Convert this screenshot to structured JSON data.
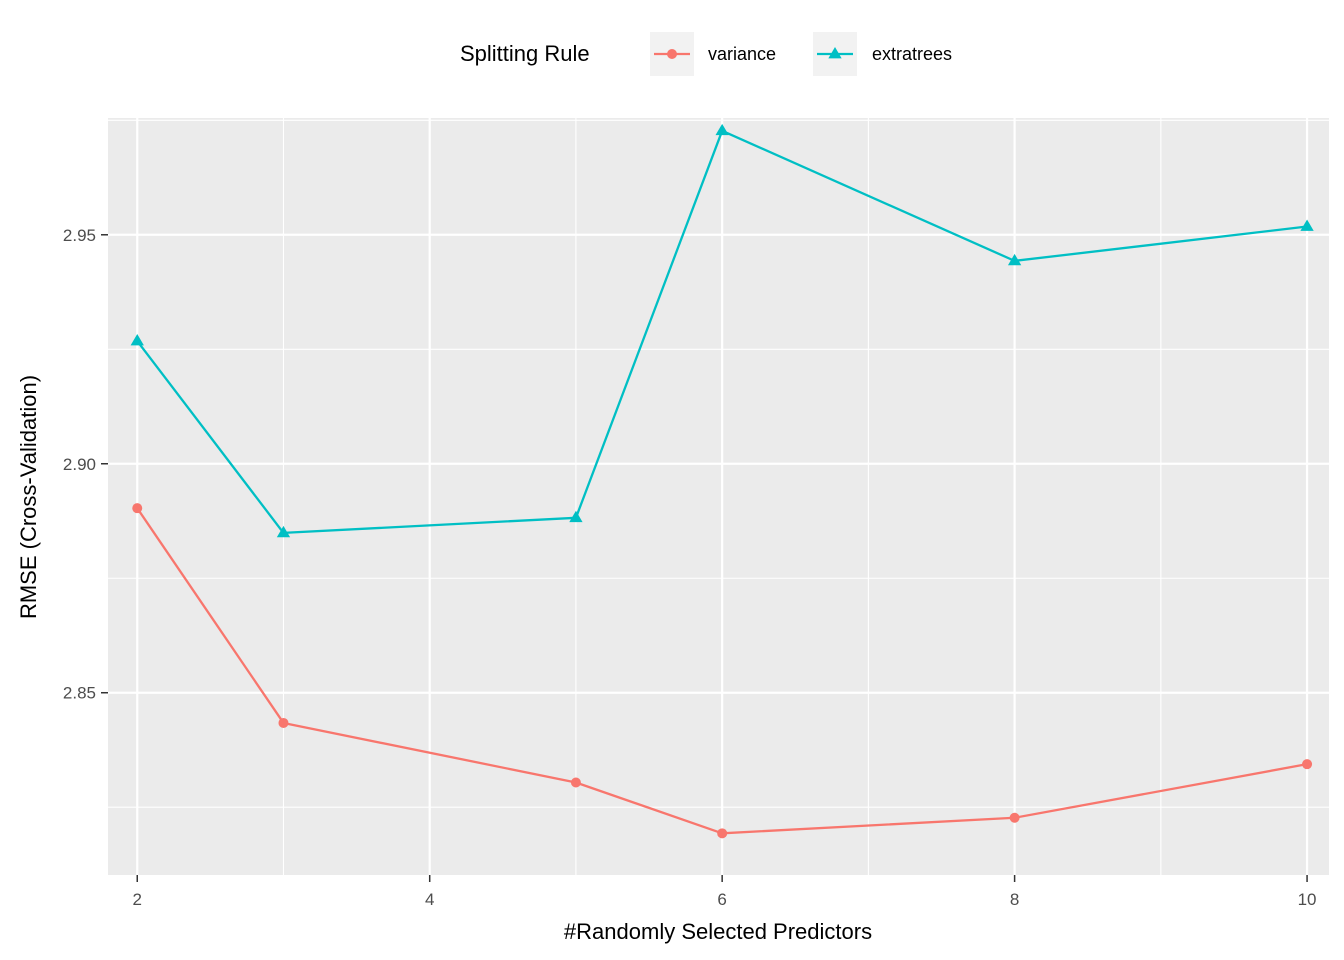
{
  "chart_data": {
    "type": "line",
    "xlabel": "#Randomly Selected Predictors",
    "ylabel": "RMSE (Cross-Validation)",
    "xlim": [
      1.8,
      10.15
    ],
    "ylim": [
      2.8102,
      2.9755
    ],
    "x_ticks": [
      2,
      4,
      6,
      8,
      10
    ],
    "x_tick_labels": [
      "2",
      "4",
      "6",
      "8",
      "10"
    ],
    "y_ticks": [
      2.85,
      2.9,
      2.95
    ],
    "y_tick_labels": [
      "2.85",
      "2.90",
      "2.95"
    ],
    "grid": true,
    "legend": {
      "title": "Splitting Rule",
      "position": "top"
    },
    "x": [
      2,
      3,
      5,
      6,
      8,
      10
    ],
    "series": [
      {
        "name": "variance",
        "color": "#F8766D",
        "marker": "circle",
        "values": [
          2.8903,
          2.8434,
          2.8304,
          2.8193,
          2.8227,
          2.8344
        ]
      },
      {
        "name": "extratrees",
        "color": "#00BFC4",
        "marker": "triangle",
        "values": [
          2.9268,
          2.8849,
          2.8882,
          2.9727,
          2.9443,
          2.9518
        ]
      }
    ]
  }
}
